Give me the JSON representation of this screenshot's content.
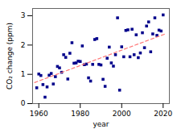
{
  "chart_data": {
    "type": "scatter",
    "xlabel": "year",
    "ylabel": "CO₂ change (ppm)",
    "xlim": [
      1957,
      2023
    ],
    "ylim": [
      0,
      3.25
    ],
    "xticks": [
      1960,
      1980,
      2000,
      2020
    ],
    "yticks": [
      0,
      1,
      2,
      3
    ],
    "series": [
      {
        "type": "scatter",
        "color": "#00008B",
        "marker": "square",
        "x": [
          1959,
          1960,
          1961,
          1962,
          1963,
          1964,
          1965,
          1966,
          1967,
          1968,
          1969,
          1970,
          1971,
          1972,
          1973,
          1974,
          1975,
          1976,
          1977,
          1978,
          1979,
          1980,
          1981,
          1982,
          1983,
          1984,
          1985,
          1986,
          1987,
          1988,
          1989,
          1990,
          1991,
          1992,
          1993,
          1994,
          1995,
          1996,
          1997,
          1998,
          1999,
          2000,
          2001,
          2002,
          2003,
          2004,
          2005,
          2006,
          2007,
          2008,
          2009,
          2010,
          2011,
          2012,
          2013,
          2014,
          2015,
          2016,
          2017,
          2018,
          2019,
          2020
        ],
        "values": [
          0.54,
          1.01,
          0.96,
          0.65,
          0.22,
          0.57,
          0.97,
          1.03,
          0.67,
          0.92,
          1.27,
          1.22,
          1.07,
          1.67,
          1.58,
          0.84,
          1.72,
          2.08,
          1.38,
          1.39,
          1.45,
          1.44,
          1.97,
          1.33,
          1.35,
          0.88,
          0.77,
          1.34,
          2.19,
          2.22,
          1.34,
          1.32,
          0.83,
          0.59,
          1.55,
          1.93,
          1.39,
          1.28,
          1.67,
          2.93,
          0.46,
          1.94,
          1.6,
          2.5,
          2.52,
          1.6,
          2.54,
          1.67,
          2.35,
          1.57,
          1.73,
          2.42,
          1.91,
          2.65,
          2.79,
          1.77,
          2.38,
          2.93,
          2.33,
          2.51,
          2.48,
          3.03
        ]
      },
      {
        "type": "line",
        "color": "#FF7777",
        "line_style": "dashed",
        "x": [
          1958,
          2021
        ],
        "values": [
          0.72,
          2.38
        ]
      }
    ]
  }
}
